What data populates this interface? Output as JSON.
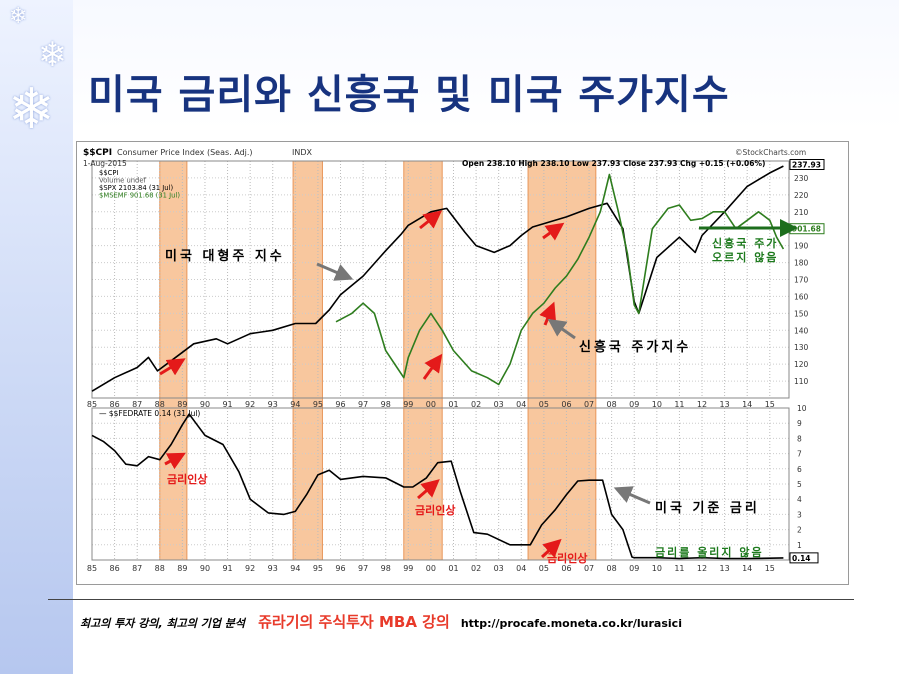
{
  "slide": {
    "title": "미국 금리와 신흥국 및 미국 주가지수",
    "footer_left": "최고의 투자 강의, 최고의 기업 분석",
    "footer_brand": "쥬라기의 주식투자 MBA 강의",
    "footer_url": "http://procafe.moneta.co.kr/lurasici"
  },
  "chart_data": [
    {
      "type": "line",
      "panel": "top",
      "header": {
        "symbol": "$$CPI",
        "name": "Consumer Price Index (Seas. Adj.)",
        "exchange": "INDX",
        "date": "1-Aug-2015",
        "ohlc": "Open 238.10  High 238.10  Low 237.93  Close 237.93  Chg +0.15 (+0.06%)",
        "source": "©StockCharts.com"
      },
      "legend": [
        "$$CPI",
        "Volume undef",
        "$SPX 2103.84 (31 Jul)",
        "$MSEMF 901.68 (31 Jul)"
      ],
      "ylim": [
        100,
        240
      ],
      "y_ticks": [
        110,
        120,
        130,
        140,
        150,
        160,
        170,
        180,
        190,
        200,
        210,
        220,
        230
      ],
      "last_labels": [
        "237.93",
        "901.68"
      ],
      "x_tick_labels": [
        "85",
        "86",
        "87",
        "88",
        "89",
        "90",
        "91",
        "92",
        "93",
        "94",
        "95",
        "96",
        "97",
        "98",
        "99",
        "00",
        "01",
        "02",
        "03",
        "04",
        "05",
        "06",
        "07",
        "08",
        "09",
        "10",
        "11",
        "12",
        "13",
        "14",
        "15"
      ],
      "series": [
        {
          "name": "$SPX",
          "color": "#000000",
          "x": [
            1985,
            1986,
            1987,
            1987.5,
            1987.9,
            1988.5,
            1989.5,
            1990.5,
            1991,
            1992,
            1993,
            1994,
            1994.9,
            1995.5,
            1996,
            1997,
            1998,
            1998.7,
            1999,
            2000,
            2000.7,
            2001.5,
            2002,
            2002.8,
            2003.5,
            2004,
            2004.5,
            2005,
            2006,
            2007,
            2007.8,
            2008.5,
            2009,
            2009.2,
            2010,
            2011,
            2011.7,
            2012,
            2013,
            2014,
            2015,
            2015.6
          ],
          "y": [
            104,
            112,
            118,
            124,
            116,
            122,
            132,
            135,
            132,
            138,
            140,
            144,
            144,
            152,
            161,
            172,
            187,
            197,
            202,
            210,
            212,
            198,
            190,
            186,
            190,
            196,
            201,
            203,
            207,
            212,
            215,
            200,
            157,
            150,
            183,
            195,
            186,
            196,
            210,
            225,
            233,
            237
          ]
        },
        {
          "name": "$MSEMF",
          "color": "#2e7d1e",
          "x": [
            1995.8,
            1996.5,
            1997,
            1997.5,
            1998,
            1998.5,
            1998.8,
            1999,
            1999.5,
            2000,
            2000.5,
            2001,
            2001.8,
            2002.5,
            2003,
            2003.5,
            2004,
            2004.5,
            2005,
            2005.5,
            2006,
            2006.5,
            2007,
            2007.5,
            2007.9,
            2008.3,
            2008.7,
            2009,
            2009.2,
            2009.8,
            2010.5,
            2011,
            2011.5,
            2012,
            2012.5,
            2013,
            2013.5,
            2014,
            2014.5,
            2015,
            2015.3,
            2015.6
          ],
          "y": [
            145,
            150,
            156,
            150,
            128,
            118,
            112,
            124,
            140,
            150,
            140,
            128,
            116,
            112,
            108,
            120,
            140,
            150,
            156,
            165,
            172,
            182,
            195,
            210,
            232,
            210,
            185,
            155,
            150,
            200,
            212,
            214,
            205,
            206,
            210,
            210,
            200,
            205,
            210,
            205,
            195,
            188
          ]
        }
      ],
      "annotations": [
        {
          "text": "미국 대형주 지수"
        },
        {
          "text": "신흥국 주가지수"
        },
        {
          "text": "신흥국 주가 오르지 않음",
          "lines": [
            "신흥국 주가",
            "오르지 않음"
          ]
        }
      ]
    },
    {
      "type": "line",
      "panel": "bottom",
      "legend": [
        "$$FEDRATE 0.14 (31 Jul)"
      ],
      "ylim": [
        0,
        10
      ],
      "y_ticks": [
        1,
        2,
        3,
        4,
        5,
        6,
        7,
        8,
        9,
        10
      ],
      "last_label": "0.14",
      "x_tick_labels": [
        "85",
        "86",
        "87",
        "88",
        "89",
        "90",
        "91",
        "92",
        "93",
        "94",
        "95",
        "96",
        "97",
        "98",
        "99",
        "00",
        "01",
        "02",
        "03",
        "04",
        "05",
        "06",
        "07",
        "08",
        "09",
        "10",
        "11",
        "12",
        "13",
        "14",
        "15"
      ],
      "series": [
        {
          "name": "$$FEDRATE",
          "color": "#000000",
          "x": [
            1985,
            1985.5,
            1986,
            1986.5,
            1987,
            1987.5,
            1988,
            1988.5,
            1989,
            1989.3,
            1989.6,
            1990,
            1990.8,
            1991.5,
            1992,
            1992.8,
            1993.5,
            1994,
            1994.5,
            1995,
            1995.5,
            1996,
            1997,
            1998,
            1998.8,
            1999.2,
            1999.8,
            2000.3,
            2000.9,
            2001.3,
            2001.9,
            2002.5,
            2003.5,
            2004.4,
            2004.9,
            2005.5,
            2006,
            2006.5,
            2007,
            2007.6,
            2008,
            2008.5,
            2008.9,
            2009,
            2010,
            2011,
            2012,
            2013,
            2014,
            2015,
            2015.6
          ],
          "y": [
            8.2,
            7.8,
            7.2,
            6.3,
            6.2,
            6.8,
            6.6,
            7.6,
            8.9,
            9.6,
            9.0,
            8.2,
            7.6,
            5.8,
            4.0,
            3.1,
            3.0,
            3.2,
            4.3,
            5.6,
            5.9,
            5.3,
            5.5,
            5.4,
            4.8,
            4.8,
            5.4,
            6.4,
            6.5,
            4.5,
            1.8,
            1.7,
            1.0,
            1.0,
            2.3,
            3.3,
            4.3,
            5.2,
            5.25,
            5.25,
            3.0,
            2.0,
            0.2,
            0.15,
            0.15,
            0.1,
            0.15,
            0.1,
            0.1,
            0.12,
            0.14
          ]
        }
      ],
      "annotations": [
        {
          "text": "금리인상"
        },
        {
          "text": "금리인상"
        },
        {
          "text": "금리인상"
        },
        {
          "text": "미국 기준 금리"
        },
        {
          "text": "금리를 올리지 않음"
        }
      ]
    }
  ],
  "highlight_periods": [
    [
      1988,
      1989.2
    ],
    [
      1993.9,
      1995.2
    ],
    [
      1998.8,
      2000.5
    ],
    [
      2004.3,
      2007.3
    ]
  ]
}
